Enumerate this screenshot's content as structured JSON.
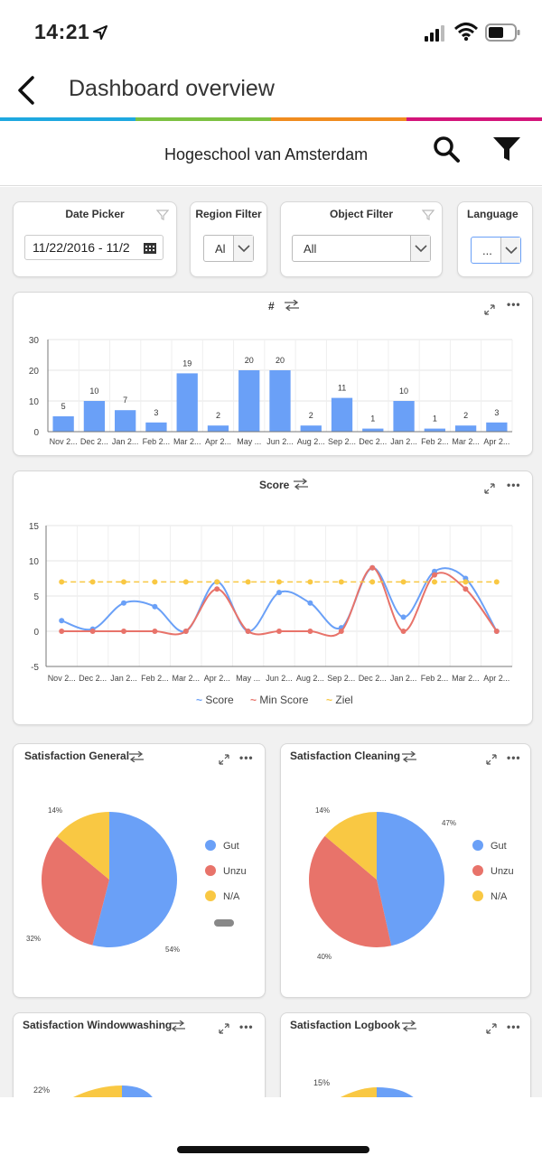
{
  "status_bar": {
    "time": "14:21"
  },
  "nav": {
    "title": "Dashboard overview"
  },
  "header": {
    "organization": "Hogeschool van Amsterdam"
  },
  "colors": {
    "stripe": [
      "#1ea8e0",
      "#7cc142",
      "#f08c1f",
      "#d3157a"
    ],
    "blue": "#6aa0f7",
    "red": "#e8736a",
    "yellow": "#f9c843"
  },
  "filters": {
    "date_picker": {
      "label": "Date Picker",
      "value": "11/22/2016 - 11/2"
    },
    "region": {
      "label": "Region Filter",
      "value": "Al"
    },
    "object": {
      "label": "Object Filter",
      "value": "All"
    },
    "language": {
      "label": "Language",
      "value": "..."
    }
  },
  "bar_chart": {
    "title": "#",
    "chart_data": {
      "type": "bar",
      "categories": [
        "Nov 2...",
        "Dec 2...",
        "Jan 2...",
        "Feb 2...",
        "Mar 2...",
        "Apr 2...",
        "May ...",
        "Jun 2...",
        "Aug 2...",
        "Sep 2...",
        "Dec 2...",
        "Jan 2...",
        "Feb 2...",
        "Mar 2...",
        "Apr 2..."
      ],
      "values": [
        5,
        10,
        7,
        3,
        19,
        2,
        20,
        20,
        2,
        11,
        1,
        10,
        1,
        2,
        3
      ],
      "yticks": [
        0,
        10,
        20,
        30
      ],
      "ylim": [
        0,
        30
      ]
    }
  },
  "line_chart": {
    "title": "Score",
    "chart_data": {
      "type": "line",
      "categories": [
        "Nov 2...",
        "Dec 2...",
        "Jan 2...",
        "Feb 2...",
        "Mar 2...",
        "Apr 2...",
        "May ...",
        "Jun 2...",
        "Aug 2...",
        "Sep 2...",
        "Dec 2...",
        "Jan 2...",
        "Feb 2...",
        "Mar 2...",
        "Apr 2..."
      ],
      "yticks": [
        -5,
        0,
        5,
        10,
        15
      ],
      "ylim": [
        -5,
        15
      ],
      "series": [
        {
          "name": "Score",
          "values": [
            1.5,
            0.3,
            4,
            3.5,
            0,
            7,
            0,
            5.5,
            4,
            0.5,
            9,
            2,
            8.5,
            7.5,
            0
          ]
        },
        {
          "name": "Min Score",
          "values": [
            0,
            0,
            0,
            0,
            0,
            6,
            0,
            0,
            0,
            0,
            9,
            0,
            8,
            6,
            0
          ]
        },
        {
          "name": "Ziel",
          "values": [
            7,
            7,
            7,
            7,
            7,
            7,
            7,
            7,
            7,
            7,
            7,
            7,
            7,
            7,
            7
          ]
        }
      ]
    }
  },
  "pie_charts": [
    {
      "title": "Satisfaction General",
      "chart_data": {
        "type": "pie",
        "labels": [
          "Gut",
          "Unzu",
          "N/A"
        ],
        "values": [
          54,
          32,
          14
        ],
        "value_labels": [
          "54%",
          "32%",
          "14%"
        ]
      }
    },
    {
      "title": "Satisfaction Cleaning",
      "chart_data": {
        "type": "pie",
        "labels": [
          "Gut",
          "Unzu",
          "N/A"
        ],
        "values": [
          47,
          40,
          14
        ],
        "value_labels": [
          "47%",
          "40%",
          "14%"
        ]
      }
    },
    {
      "title": "Satisfaction Windowwashing",
      "chart_data": {
        "type": "pie",
        "visible_labels": [
          "22%"
        ]
      }
    },
    {
      "title": "Satisfaction Logbook",
      "chart_data": {
        "type": "pie",
        "visible_labels": [
          "15%"
        ]
      }
    }
  ]
}
